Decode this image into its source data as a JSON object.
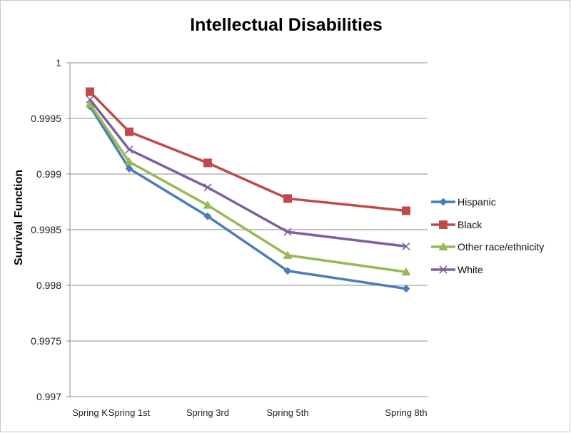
{
  "chart_data": {
    "type": "line",
    "title": "Intellectual Disabilities",
    "xlabel": "",
    "ylabel": "Survival Function",
    "categories": [
      "Spring K",
      "Spring 1st",
      "Spring 3rd",
      "Spring 5th",
      "Spring 8th"
    ],
    "x_positions": [
      0,
      1,
      3,
      5,
      8
    ],
    "ylim": [
      0.997,
      1.0
    ],
    "yticks": [
      0.997,
      0.9975,
      0.998,
      0.9985,
      0.999,
      0.9995,
      1
    ],
    "ytick_labels": [
      "0.997",
      "0.9975",
      "0.998",
      "0.9985",
      "0.999",
      "0.9995",
      "1"
    ],
    "grid": true,
    "legend_position": "right",
    "series": [
      {
        "name": "Hispanic",
        "color": "#4a7ebb",
        "marker": "diamond",
        "values": [
          0.99961,
          0.99905,
          0.99862,
          0.99813,
          0.99797
        ]
      },
      {
        "name": "Black",
        "color": "#be4b48",
        "marker": "square",
        "values": [
          0.99974,
          0.99938,
          0.9991,
          0.99878,
          0.99867
        ]
      },
      {
        "name": "Other race/ethnicity",
        "color": "#98b954",
        "marker": "triangle",
        "values": [
          0.99963,
          0.99911,
          0.99872,
          0.99827,
          0.99812
        ]
      },
      {
        "name": "White",
        "color": "#7d60a0",
        "marker": "x",
        "values": [
          0.99967,
          0.99922,
          0.99888,
          0.99848,
          0.99835
        ]
      }
    ]
  }
}
